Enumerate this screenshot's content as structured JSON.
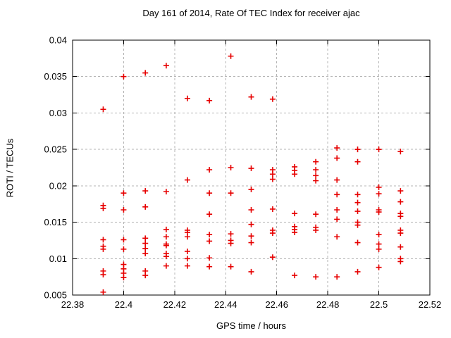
{
  "title": "Day 161 of 2014, Rate Of TEC Index for receiver ajac",
  "chart_data": {
    "type": "scatter",
    "title": "Day 161 of 2014, Rate Of TEC Index for receiver ajac",
    "xlabel": "GPS time / hours",
    "ylabel": "ROTI / TECUs",
    "xlim": [
      22.38,
      22.52
    ],
    "ylim": [
      0.005,
      0.04
    ],
    "xticks": [
      22.38,
      22.4,
      22.42,
      22.44,
      22.46,
      22.48,
      22.5,
      22.52
    ],
    "xtick_labels": [
      "22.38",
      "22.4",
      "22.42",
      "22.44",
      "22.46",
      "22.48",
      "22.5",
      "22.52"
    ],
    "yticks": [
      0.005,
      0.01,
      0.015,
      0.02,
      0.025,
      0.03,
      0.035,
      0.04
    ],
    "ytick_labels": [
      "0.005",
      "0.01",
      "0.015",
      "0.02",
      "0.025",
      "0.03",
      "0.035",
      "0.04"
    ],
    "grid": true,
    "grid_color": "#b4b4b4",
    "legend": "none",
    "marker": "plus",
    "marker_color": "#e60000",
    "series": [
      {
        "name": "ROTI",
        "points": [
          [
            22.392,
            0.0305
          ],
          [
            22.392,
            0.0173
          ],
          [
            22.392,
            0.0169
          ],
          [
            22.392,
            0.0126
          ],
          [
            22.392,
            0.0117
          ],
          [
            22.392,
            0.0113
          ],
          [
            22.392,
            0.0083
          ],
          [
            22.392,
            0.0078
          ],
          [
            22.392,
            0.0054
          ],
          [
            22.4,
            0.035
          ],
          [
            22.4,
            0.019
          ],
          [
            22.4,
            0.0167
          ],
          [
            22.4,
            0.0126
          ],
          [
            22.4,
            0.0113
          ],
          [
            22.4,
            0.0092
          ],
          [
            22.4,
            0.0086
          ],
          [
            22.4,
            0.008
          ],
          [
            22.4,
            0.0074
          ],
          [
            22.4085,
            0.0355
          ],
          [
            22.4085,
            0.0193
          ],
          [
            22.4085,
            0.0171
          ],
          [
            22.4085,
            0.0128
          ],
          [
            22.4085,
            0.0121
          ],
          [
            22.4085,
            0.0114
          ],
          [
            22.4085,
            0.0107
          ],
          [
            22.4085,
            0.0083
          ],
          [
            22.4085,
            0.0077
          ],
          [
            22.4167,
            0.0365
          ],
          [
            22.4167,
            0.0192
          ],
          [
            22.4167,
            0.014
          ],
          [
            22.4167,
            0.013
          ],
          [
            22.4167,
            0.012
          ],
          [
            22.4167,
            0.0118
          ],
          [
            22.4167,
            0.0107
          ],
          [
            22.4167,
            0.0103
          ],
          [
            22.4167,
            0.009
          ],
          [
            22.425,
            0.032
          ],
          [
            22.425,
            0.0208
          ],
          [
            22.425,
            0.0139
          ],
          [
            22.425,
            0.0136
          ],
          [
            22.425,
            0.013
          ],
          [
            22.425,
            0.011
          ],
          [
            22.425,
            0.01
          ],
          [
            22.425,
            0.009
          ],
          [
            22.4336,
            0.0317
          ],
          [
            22.4336,
            0.0222
          ],
          [
            22.4336,
            0.019
          ],
          [
            22.4336,
            0.0161
          ],
          [
            22.4336,
            0.0133
          ],
          [
            22.4336,
            0.0124
          ],
          [
            22.4336,
            0.0101
          ],
          [
            22.4336,
            0.0089
          ],
          [
            22.442,
            0.0378
          ],
          [
            22.442,
            0.0225
          ],
          [
            22.442,
            0.019
          ],
          [
            22.442,
            0.0134
          ],
          [
            22.442,
            0.0125
          ],
          [
            22.442,
            0.0121
          ],
          [
            22.442,
            0.0089
          ],
          [
            22.45,
            0.0322
          ],
          [
            22.45,
            0.0224
          ],
          [
            22.45,
            0.0195
          ],
          [
            22.45,
            0.0167
          ],
          [
            22.45,
            0.0147
          ],
          [
            22.45,
            0.0131
          ],
          [
            22.45,
            0.0122
          ],
          [
            22.45,
            0.0082
          ],
          [
            22.4584,
            0.0319
          ],
          [
            22.4584,
            0.0222
          ],
          [
            22.4584,
            0.0216
          ],
          [
            22.4584,
            0.0209
          ],
          [
            22.4584,
            0.0168
          ],
          [
            22.4584,
            0.0139
          ],
          [
            22.4584,
            0.0135
          ],
          [
            22.4584,
            0.0102
          ],
          [
            22.467,
            0.0226
          ],
          [
            22.467,
            0.0221
          ],
          [
            22.467,
            0.0216
          ],
          [
            22.467,
            0.0162
          ],
          [
            22.467,
            0.0144
          ],
          [
            22.467,
            0.014
          ],
          [
            22.467,
            0.0136
          ],
          [
            22.467,
            0.0077
          ],
          [
            22.4753,
            0.0233
          ],
          [
            22.4753,
            0.0222
          ],
          [
            22.4753,
            0.0214
          ],
          [
            22.4753,
            0.0207
          ],
          [
            22.4753,
            0.0161
          ],
          [
            22.4753,
            0.0143
          ],
          [
            22.4753,
            0.0139
          ],
          [
            22.4753,
            0.0075
          ],
          [
            22.4836,
            0.0252
          ],
          [
            22.4836,
            0.0238
          ],
          [
            22.4836,
            0.0208
          ],
          [
            22.4836,
            0.0188
          ],
          [
            22.4836,
            0.0167
          ],
          [
            22.4836,
            0.0154
          ],
          [
            22.4836,
            0.013
          ],
          [
            22.4836,
            0.0075
          ],
          [
            22.4917,
            0.025
          ],
          [
            22.4917,
            0.0233
          ],
          [
            22.4917,
            0.0188
          ],
          [
            22.4917,
            0.0177
          ],
          [
            22.4917,
            0.0165
          ],
          [
            22.4917,
            0.015
          ],
          [
            22.4917,
            0.0146
          ],
          [
            22.4917,
            0.0122
          ],
          [
            22.4917,
            0.0082
          ],
          [
            22.5,
            0.025
          ],
          [
            22.5,
            0.0198
          ],
          [
            22.5,
            0.0189
          ],
          [
            22.5,
            0.0167
          ],
          [
            22.5,
            0.0164
          ],
          [
            22.5,
            0.0133
          ],
          [
            22.5,
            0.012
          ],
          [
            22.5,
            0.0113
          ],
          [
            22.5,
            0.0088
          ],
          [
            22.5085,
            0.0247
          ],
          [
            22.5085,
            0.0193
          ],
          [
            22.5085,
            0.0178
          ],
          [
            22.5085,
            0.0162
          ],
          [
            22.5085,
            0.0158
          ],
          [
            22.5085,
            0.0139
          ],
          [
            22.5085,
            0.0135
          ],
          [
            22.5085,
            0.0116
          ],
          [
            22.5085,
            0.01
          ],
          [
            22.5085,
            0.0096
          ]
        ]
      }
    ]
  }
}
